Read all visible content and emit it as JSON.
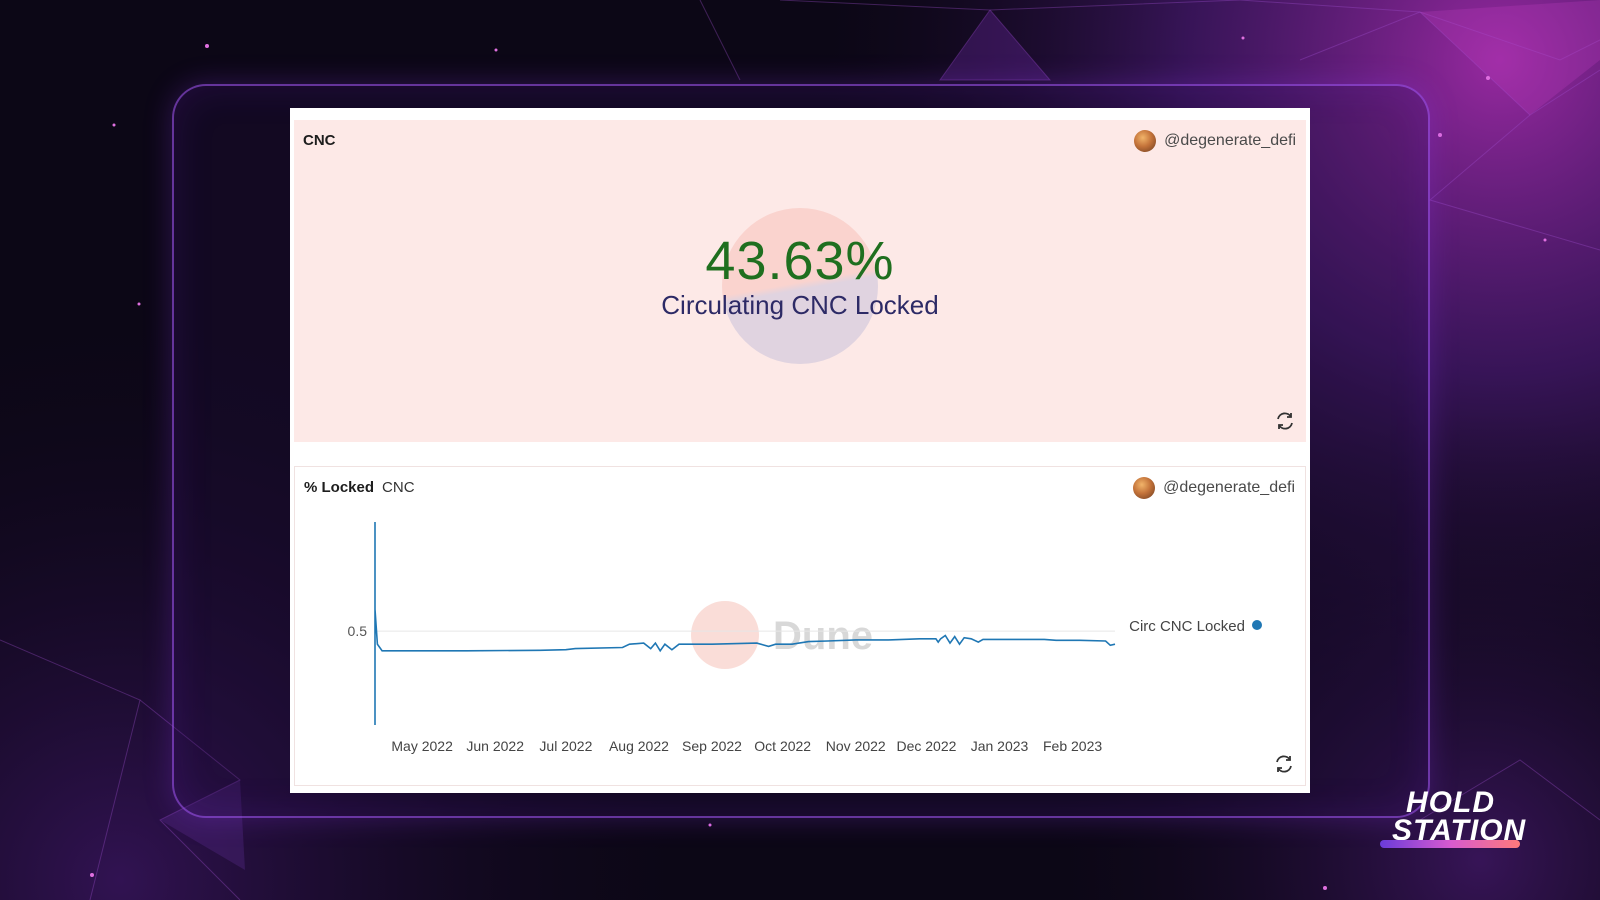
{
  "counter_card": {
    "title": "CNC",
    "author": "@degenerate_defi",
    "value": "43.63%",
    "label": "Circulating CNC Locked"
  },
  "chart_card": {
    "title": "% Locked",
    "subtitle": "CNC",
    "author": "@degenerate_defi"
  },
  "watermark": "Dune",
  "brand": {
    "line1": "HOLD",
    "line2": "STATION"
  },
  "colors": {
    "accent": "#1f77b4",
    "counter_value": "#1f6f1f",
    "counter_label": "#2d2a66",
    "card_bg": "#fde9e7"
  },
  "icons": {
    "refresh": "refresh-icon",
    "avatar": "avatar"
  },
  "chart_data": {
    "type": "line",
    "title": "",
    "xlabel": "",
    "ylabel": "",
    "x_tick_labels": [
      "May 2022",
      "Jun 2022",
      "Jul 2022",
      "Aug 2022",
      "Sep 2022",
      "Oct 2022",
      "Nov 2022",
      "Dec 2022",
      "Jan 2023",
      "Feb 2023"
    ],
    "y_tick_labels": [
      "0.5"
    ],
    "y_ticks": [
      0.5
    ],
    "ylim": [
      0.07,
      1.0
    ],
    "grid": true,
    "legend_position": "right",
    "series": [
      {
        "name": "Circ CNC Locked",
        "color": "#1f77b4",
        "points": [
          [
            "2022-04-11",
            1.0
          ],
          [
            "2022-04-11",
            0.07
          ],
          [
            "2022-04-11",
            0.6
          ],
          [
            "2022-04-12",
            0.44
          ],
          [
            "2022-04-14",
            0.41
          ],
          [
            "2022-05-20",
            0.41
          ],
          [
            "2022-06-20",
            0.412
          ],
          [
            "2022-07-01",
            0.415
          ],
          [
            "2022-07-05",
            0.42
          ],
          [
            "2022-07-25",
            0.425
          ],
          [
            "2022-07-28",
            0.44
          ],
          [
            "2022-08-03",
            0.445
          ],
          [
            "2022-08-06",
            0.42
          ],
          [
            "2022-08-08",
            0.445
          ],
          [
            "2022-08-10",
            0.41
          ],
          [
            "2022-08-12",
            0.44
          ],
          [
            "2022-08-15",
            0.415
          ],
          [
            "2022-08-18",
            0.44
          ],
          [
            "2022-09-01",
            0.44
          ],
          [
            "2022-09-20",
            0.445
          ],
          [
            "2022-09-25",
            0.43
          ],
          [
            "2022-09-28",
            0.44
          ],
          [
            "2022-10-05",
            0.44
          ],
          [
            "2022-10-12",
            0.452
          ],
          [
            "2022-10-20",
            0.455
          ],
          [
            "2022-11-01",
            0.46
          ],
          [
            "2022-11-15",
            0.46
          ],
          [
            "2022-11-28",
            0.465
          ],
          [
            "2022-12-05",
            0.465
          ],
          [
            "2022-12-06",
            0.45
          ],
          [
            "2022-12-07",
            0.465
          ],
          [
            "2022-12-09",
            0.48
          ],
          [
            "2022-12-11",
            0.445
          ],
          [
            "2022-12-13",
            0.475
          ],
          [
            "2022-12-15",
            0.44
          ],
          [
            "2022-12-17",
            0.47
          ],
          [
            "2022-12-20",
            0.465
          ],
          [
            "2022-12-23",
            0.45
          ],
          [
            "2022-12-25",
            0.462
          ],
          [
            "2023-01-10",
            0.462
          ],
          [
            "2023-01-20",
            0.462
          ],
          [
            "2023-01-25",
            0.458
          ],
          [
            "2023-02-04",
            0.458
          ],
          [
            "2023-02-15",
            0.455
          ],
          [
            "2023-02-17",
            0.435
          ],
          [
            "2023-02-19",
            0.44
          ]
        ]
      }
    ]
  }
}
